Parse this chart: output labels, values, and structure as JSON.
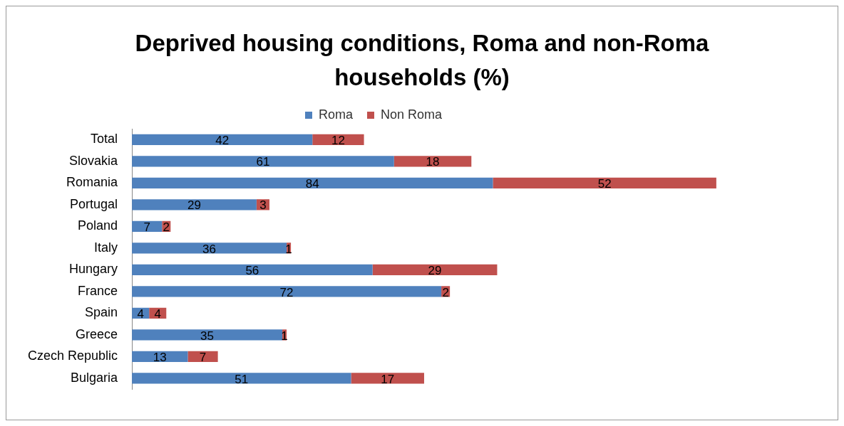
{
  "chart_data": {
    "type": "bar",
    "orientation": "horizontal",
    "stacked": true,
    "title": "Deprived housing conditions, Roma and non-Roma households (%)",
    "categories": [
      "Total",
      "Slovakia",
      "Romania",
      "Portugal",
      "Poland",
      "Italy",
      "Hungary",
      "France",
      "Spain",
      "Greece",
      "Czech Republic",
      "Bulgaria"
    ],
    "series": [
      {
        "name": "Roma",
        "color": "#4f81bd",
        "values": [
          42,
          61,
          84,
          29,
          7,
          36,
          56,
          72,
          4,
          35,
          13,
          51
        ]
      },
      {
        "name": "Non Roma",
        "color": "#c0504d",
        "values": [
          12,
          18,
          52,
          3,
          2,
          1,
          29,
          2,
          4,
          1,
          7,
          17
        ]
      }
    ],
    "data_labels": true,
    "legend": "top"
  }
}
